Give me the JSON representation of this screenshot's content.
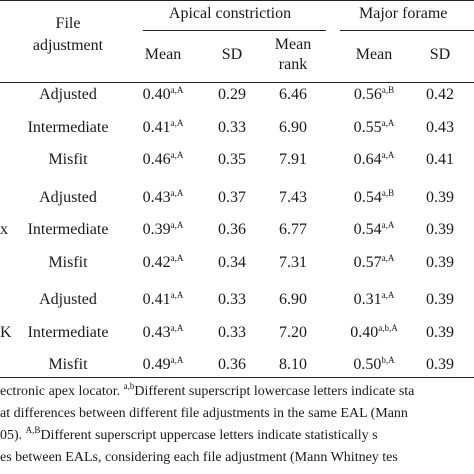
{
  "header": {
    "file_adjustment": [
      "File",
      "adjustment"
    ],
    "apical_constriction": "Apical constriction",
    "major_foramen": "Major forame",
    "col_mean": "Mean",
    "col_sd": "SD",
    "col_mean_rank": [
      "Mean",
      "rank"
    ]
  },
  "groups": [
    {
      "label": "",
      "rows": [
        {
          "adjustment": "Adjusted",
          "ac_mean": "0.40",
          "ac_mean_sup": "a,A",
          "ac_sd": "0.29",
          "ac_rank": "6.46",
          "mf_mean": "0.56",
          "mf_mean_sup": "a,B",
          "mf_sd": "0.42"
        },
        {
          "adjustment": "Intermediate",
          "ac_mean": "0.41",
          "ac_mean_sup": "a,A",
          "ac_sd": "0.33",
          "ac_rank": "6.90",
          "mf_mean": "0.55",
          "mf_mean_sup": "a,A",
          "mf_sd": "0.43"
        },
        {
          "adjustment": "Misfit",
          "ac_mean": "0.46",
          "ac_mean_sup": "a,A",
          "ac_sd": "0.35",
          "ac_rank": "7.91",
          "mf_mean": "0.64",
          "mf_mean_sup": "a,A",
          "mf_sd": "0.41"
        }
      ]
    },
    {
      "label": "x",
      "rows": [
        {
          "adjustment": "Adjusted",
          "ac_mean": "0.43",
          "ac_mean_sup": "a,A",
          "ac_sd": "0.37",
          "ac_rank": "7.43",
          "mf_mean": "0.54",
          "mf_mean_sup": "a,B",
          "mf_sd": "0.39"
        },
        {
          "adjustment": "Intermediate",
          "ac_mean": "0.39",
          "ac_mean_sup": "a,A",
          "ac_sd": "0.36",
          "ac_rank": "6.77",
          "mf_mean": "0.54",
          "mf_mean_sup": "a,A",
          "mf_sd": "0.39"
        },
        {
          "adjustment": "Misfit",
          "ac_mean": "0.42",
          "ac_mean_sup": "a,A",
          "ac_sd": "0.34",
          "ac_rank": "7.31",
          "mf_mean": "0.57",
          "mf_mean_sup": "a,A",
          "mf_sd": "0.39"
        }
      ]
    },
    {
      "label": "K",
      "rows": [
        {
          "adjustment": "Adjusted",
          "ac_mean": "0.41",
          "ac_mean_sup": "a,A",
          "ac_sd": "0.33",
          "ac_rank": "6.90",
          "mf_mean": "0.31",
          "mf_mean_sup": "a,A",
          "mf_sd": "0.39"
        },
        {
          "adjustment": "Intermediate",
          "ac_mean": "0.43",
          "ac_mean_sup": "a,A",
          "ac_sd": "0.33",
          "ac_rank": "7.20",
          "mf_mean": "0.40",
          "mf_mean_sup": "a,b,A",
          "mf_sd": "0.39"
        },
        {
          "adjustment": "Misfit",
          "ac_mean": "0.49",
          "ac_mean_sup": "a,A",
          "ac_sd": "0.36",
          "ac_rank": "8.10",
          "mf_mean": "0.50",
          "mf_mean_sup": "b,A",
          "mf_sd": "0.39"
        }
      ]
    }
  ],
  "footnote": {
    "line1_pre": "ectronic apex locator. ",
    "line1_sup": "a,b",
    "line1_post": "Different superscript lowercase letters indicate sta",
    "line2": "at differences between different file adjustments in the same EAL (Mann",
    "line3_pre": "05). ",
    "line3_sup": "A,B",
    "line3_post": "Different superscript uppercase letters indicate statistically s",
    "line4": "es between EALs, considering each file adjustment (Mann Whitney tes"
  }
}
